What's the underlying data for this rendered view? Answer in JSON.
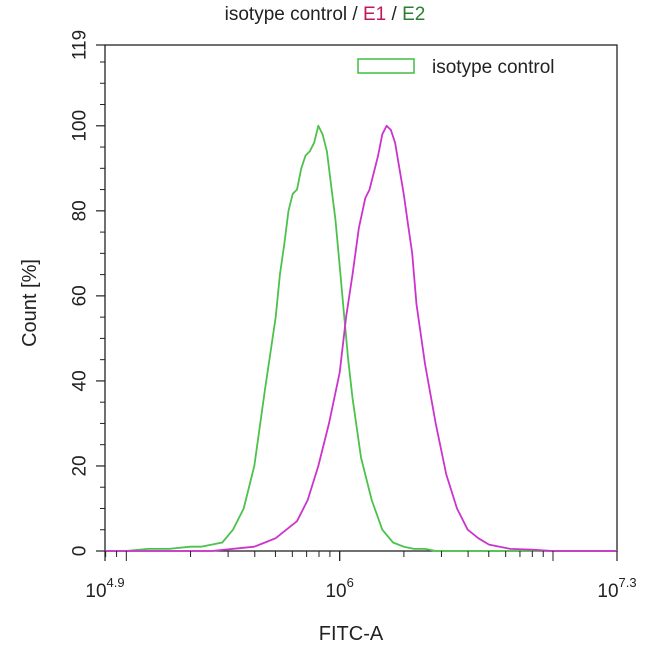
{
  "chart_data": {
    "type": "line",
    "title_parts": [
      {
        "text": "isotype control",
        "color": "#222222"
      },
      {
        "text": " / ",
        "color": "#222222"
      },
      {
        "text": "E1",
        "color": "#c2185b"
      },
      {
        "text": " / ",
        "color": "#222222"
      },
      {
        "text": "E2",
        "color": "#2e7d32"
      }
    ],
    "xlabel": "FITC-A",
    "ylabel": "Count [%]",
    "x_scale": "log10",
    "xlim_log10": [
      4.9,
      7.3
    ],
    "ylim": [
      0,
      119
    ],
    "x_tick_labels": [
      {
        "exp": 4.9,
        "base": "10",
        "power": "4.9"
      },
      {
        "exp": 6.0,
        "base": "10",
        "power": "6"
      },
      {
        "exp": 7.3,
        "base": "10",
        "power": "7.3"
      }
    ],
    "y_ticks": [
      0,
      20,
      40,
      60,
      80,
      100,
      119
    ],
    "legend": {
      "placement": "top-right",
      "entries": [
        {
          "label": "isotype control",
          "color": "#4cc24c"
        }
      ]
    },
    "series": [
      {
        "name": "isotype control",
        "color": "#4cc24c",
        "x_log10": [
          4.9,
          5.0,
          5.1,
          5.2,
          5.3,
          5.35,
          5.4,
          5.45,
          5.5,
          5.55,
          5.6,
          5.65,
          5.7,
          5.72,
          5.74,
          5.76,
          5.78,
          5.8,
          5.82,
          5.84,
          5.86,
          5.88,
          5.9,
          5.92,
          5.94,
          5.96,
          5.98,
          6.0,
          6.02,
          6.04,
          6.06,
          6.1,
          6.15,
          6.2,
          6.25,
          6.3,
          6.35,
          6.4,
          6.45,
          6.5,
          7.3
        ],
        "y": [
          0,
          0,
          0.5,
          0.5,
          1,
          1,
          1.5,
          2,
          5,
          10,
          20,
          38,
          55,
          65,
          72,
          80,
          84,
          85,
          90,
          93,
          94,
          96,
          100,
          98,
          94,
          86,
          78,
          67,
          56,
          45,
          36,
          22,
          12,
          5,
          2,
          1,
          0.5,
          0.5,
          0,
          0,
          0
        ]
      },
      {
        "name": "E1",
        "color": "#cc33cc",
        "x_log10": [
          4.9,
          5.2,
          5.4,
          5.6,
          5.65,
          5.7,
          5.75,
          5.8,
          5.85,
          5.9,
          5.95,
          6.0,
          6.03,
          6.06,
          6.09,
          6.12,
          6.14,
          6.16,
          6.18,
          6.2,
          6.22,
          6.24,
          6.26,
          6.28,
          6.3,
          6.32,
          6.34,
          6.36,
          6.4,
          6.45,
          6.5,
          6.55,
          6.6,
          6.65,
          6.7,
          6.75,
          6.8,
          6.9,
          7.0,
          7.3
        ],
        "y": [
          0,
          0,
          0,
          1,
          2,
          3,
          5,
          7,
          12,
          20,
          30,
          42,
          55,
          65,
          76,
          83,
          85,
          89,
          93,
          98,
          100,
          99,
          96,
          90,
          84,
          77,
          70,
          58,
          44,
          30,
          18,
          10,
          5,
          3,
          1.5,
          1,
          0.5,
          0.3,
          0,
          0
        ]
      }
    ]
  }
}
